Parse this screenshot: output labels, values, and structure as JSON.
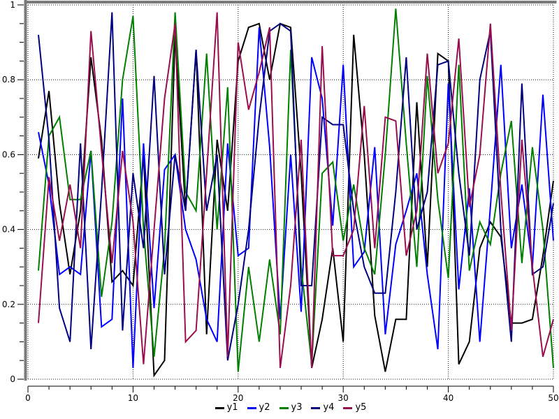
{
  "chart": {
    "background": "#ffffff",
    "frame_color": "#7a7a7a",
    "grid_color": "#1a1a1a",
    "axis_color": "#000000",
    "text_color": "#000000"
  },
  "chart_data": {
    "type": "line",
    "title": "",
    "xlabel": "",
    "ylabel": "",
    "xlim": [
      0,
      50
    ],
    "ylim": [
      0,
      1
    ],
    "x_major_ticks": [
      0,
      10,
      20,
      30,
      40,
      50
    ],
    "x_tick_labels": [
      "0",
      "10",
      "20",
      "30",
      "40",
      "50"
    ],
    "x_minor_tick_step": 2,
    "y_major_ticks": [
      0,
      0.2,
      0.4,
      0.6,
      0.8,
      1
    ],
    "y_tick_labels": [
      "0",
      "0.2",
      "0.4",
      "0.6",
      "0.8",
      "1"
    ],
    "y_minor_tick_step": 0.05,
    "grid": "dotted",
    "legend_position": "bottom-center",
    "x": [
      1,
      2,
      3,
      4,
      5,
      6,
      7,
      8,
      9,
      10,
      11,
      12,
      13,
      14,
      15,
      16,
      17,
      18,
      19,
      20,
      21,
      22,
      23,
      24,
      25,
      26,
      27,
      28,
      29,
      30,
      31,
      32,
      33,
      34,
      35,
      36,
      37,
      38,
      39,
      40,
      41,
      42,
      43,
      44,
      45,
      46,
      47,
      48,
      49,
      50
    ],
    "series": [
      {
        "name": "y1",
        "color": "#000000",
        "values": [
          0.59,
          0.77,
          0.47,
          0.28,
          0.45,
          0.86,
          0.64,
          0.26,
          0.29,
          0.25,
          0.6,
          0.01,
          0.05,
          0.92,
          0.45,
          0.88,
          0.12,
          0.64,
          0.45,
          0.85,
          0.94,
          0.95,
          0.8,
          0.95,
          0.94,
          0.55,
          0.03,
          0.16,
          0.35,
          0.1,
          0.92,
          0.6,
          0.17,
          0.02,
          0.16,
          0.16,
          0.74,
          0.3,
          0.87,
          0.85,
          0.04,
          0.1,
          0.35,
          0.42,
          0.38,
          0.15,
          0.15,
          0.16,
          0.33,
          0.53
        ]
      },
      {
        "name": "y2",
        "color": "#0000ff",
        "values": [
          0.66,
          0.52,
          0.28,
          0.3,
          0.28,
          0.61,
          0.14,
          0.16,
          0.75,
          0.03,
          0.63,
          0.19,
          0.56,
          0.6,
          0.4,
          0.32,
          0.16,
          0.1,
          0.63,
          0.33,
          0.35,
          0.94,
          0.62,
          0.16,
          0.6,
          0.18,
          0.86,
          0.75,
          0.41,
          0.84,
          0.3,
          0.34,
          0.62,
          0.12,
          0.36,
          0.45,
          0.55,
          0.28,
          0.08,
          0.79,
          0.24,
          0.51,
          0.1,
          0.46,
          0.84,
          0.35,
          0.52,
          0.3,
          0.76,
          0.37
        ]
      },
      {
        "name": "y3",
        "color": "#007f00",
        "values": [
          0.29,
          0.65,
          0.7,
          0.48,
          0.48,
          0.61,
          0.22,
          0.42,
          0.8,
          0.97,
          0.4,
          0.06,
          0.35,
          0.98,
          0.5,
          0.45,
          0.87,
          0.4,
          0.78,
          0.02,
          0.3,
          0.1,
          0.32,
          0.12,
          0.88,
          0.3,
          0.04,
          0.55,
          0.58,
          0.37,
          0.52,
          0.35,
          0.28,
          0.6,
          0.99,
          0.63,
          0.3,
          0.81,
          0.48,
          0.27,
          0.84,
          0.29,
          0.42,
          0.36,
          0.55,
          0.69,
          0.31,
          0.62,
          0.4,
          0.03
        ]
      },
      {
        "name": "y4",
        "color": "#000080",
        "values": [
          0.92,
          0.64,
          0.19,
          0.1,
          0.63,
          0.08,
          0.5,
          0.98,
          0.13,
          0.55,
          0.35,
          0.81,
          0.28,
          0.6,
          0.45,
          0.88,
          0.45,
          0.6,
          0.05,
          0.2,
          0.4,
          0.7,
          0.93,
          0.95,
          0.93,
          0.25,
          0.25,
          0.7,
          0.68,
          0.68,
          0.45,
          0.3,
          0.23,
          0.23,
          0.5,
          0.86,
          0.4,
          0.5,
          0.84,
          0.85,
          0.55,
          0.33,
          0.8,
          0.93,
          0.4,
          0.1,
          0.79,
          0.28,
          0.3,
          0.47
        ]
      },
      {
        "name": "y5",
        "color": "#990e4e",
        "values": [
          0.15,
          0.54,
          0.37,
          0.52,
          0.35,
          0.93,
          0.61,
          0.31,
          0.61,
          0.42,
          0.04,
          0.4,
          0.75,
          0.95,
          0.1,
          0.13,
          0.55,
          0.98,
          0.06,
          0.9,
          0.72,
          0.82,
          0.94,
          0.03,
          0.25,
          0.64,
          0.03,
          0.89,
          0.33,
          0.33,
          0.4,
          0.73,
          0.35,
          0.7,
          0.69,
          0.33,
          0.45,
          0.87,
          0.55,
          0.63,
          0.91,
          0.46,
          0.6,
          0.95,
          0.5,
          0.13,
          0.64,
          0.3,
          0.06,
          0.16
        ]
      }
    ]
  },
  "legend": {
    "items": [
      {
        "label": "y1"
      },
      {
        "label": "y2"
      },
      {
        "label": "y3"
      },
      {
        "label": "y4"
      },
      {
        "label": "y5"
      }
    ]
  }
}
